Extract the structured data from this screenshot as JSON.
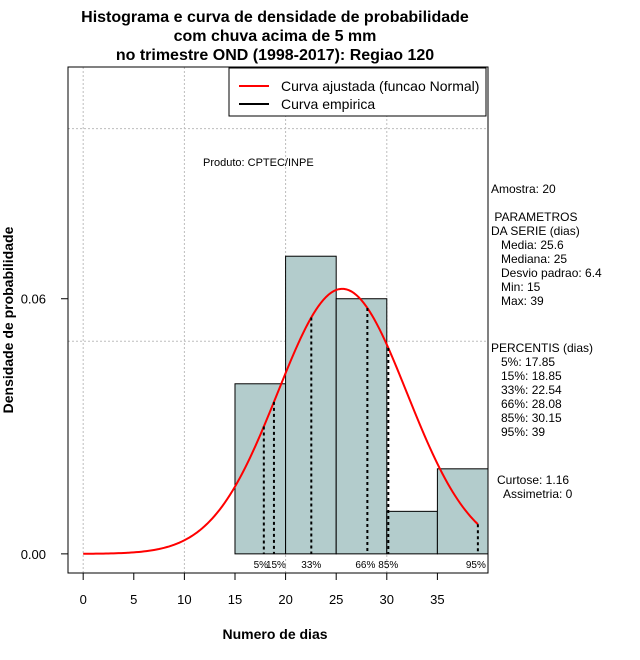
{
  "chart_data": {
    "type": "bar",
    "title": [
      "Histograma e curva de densidade de probabilidade",
      "com chuva acima de 5 mm",
      "no trimestre OND (1998-2017): Regiao 120"
    ],
    "xlabel": "Numero de dias",
    "ylabel": "Densidade de probabilidade",
    "xlim": [
      -1.5,
      40
    ],
    "ylim": [
      -0.0045,
      0.1145
    ],
    "x_ticks": [
      0,
      5,
      10,
      15,
      20,
      25,
      30,
      35
    ],
    "y_ticks": [
      0.0,
      0.06
    ],
    "y_tick_labels": [
      "0.00",
      "0.06"
    ],
    "x_gridlines": [
      0,
      10,
      20,
      30
    ],
    "y_gridlines": [
      0.05,
      0.1
    ],
    "bins": [
      {
        "x0": 15,
        "x1": 20,
        "density": 0.04
      },
      {
        "x0": 20,
        "x1": 25,
        "density": 0.07
      },
      {
        "x0": 25,
        "x1": 30,
        "density": 0.06
      },
      {
        "x0": 30,
        "x1": 35,
        "density": 0.01
      },
      {
        "x0": 35,
        "x1": 40,
        "density": 0.02
      }
    ],
    "bar_color": "#b3cccc",
    "normal_curve": {
      "mean": 25.6,
      "sd": 6.4,
      "x_from": 0,
      "x_to": 39,
      "color": "#ff0000"
    },
    "legend": {
      "position": "top-right",
      "entries": [
        {
          "label": "Curva ajustada (funcao Normal)",
          "color": "#ff0000"
        },
        {
          "label": "Curva empirica",
          "color": "#000000"
        }
      ]
    },
    "percentiles": [
      {
        "label": "5%",
        "value": 17.85
      },
      {
        "label": "15%",
        "value": 18.85
      },
      {
        "label": "33%",
        "value": 22.54
      },
      {
        "label": "66%",
        "value": 28.08
      },
      {
        "label": "85%",
        "value": 30.15
      },
      {
        "label": "95%",
        "value": 39
      }
    ],
    "product_label": "Produto: CPTEC/INPE"
  },
  "side_panel": {
    "sample": "Amostra: 20",
    "params_lines": [
      " PARAMETROS",
      "DA SERIE (dias)",
      "   Media: 25.6",
      "   Mediana: 25",
      "   Desvio padrao: 6.4",
      "   Min: 15",
      "   Max: 39"
    ],
    "percentile_lines": [
      "PERCENTIS (dias)",
      "   5%: 17.85",
      "   15%: 18.85",
      "   33%: 22.54",
      "   66%: 28.08",
      "   85%: 30.15",
      "   95%: 39"
    ],
    "shape_lines": [
      "Curtose: 1.16",
      "  Assimetria: 0"
    ]
  }
}
